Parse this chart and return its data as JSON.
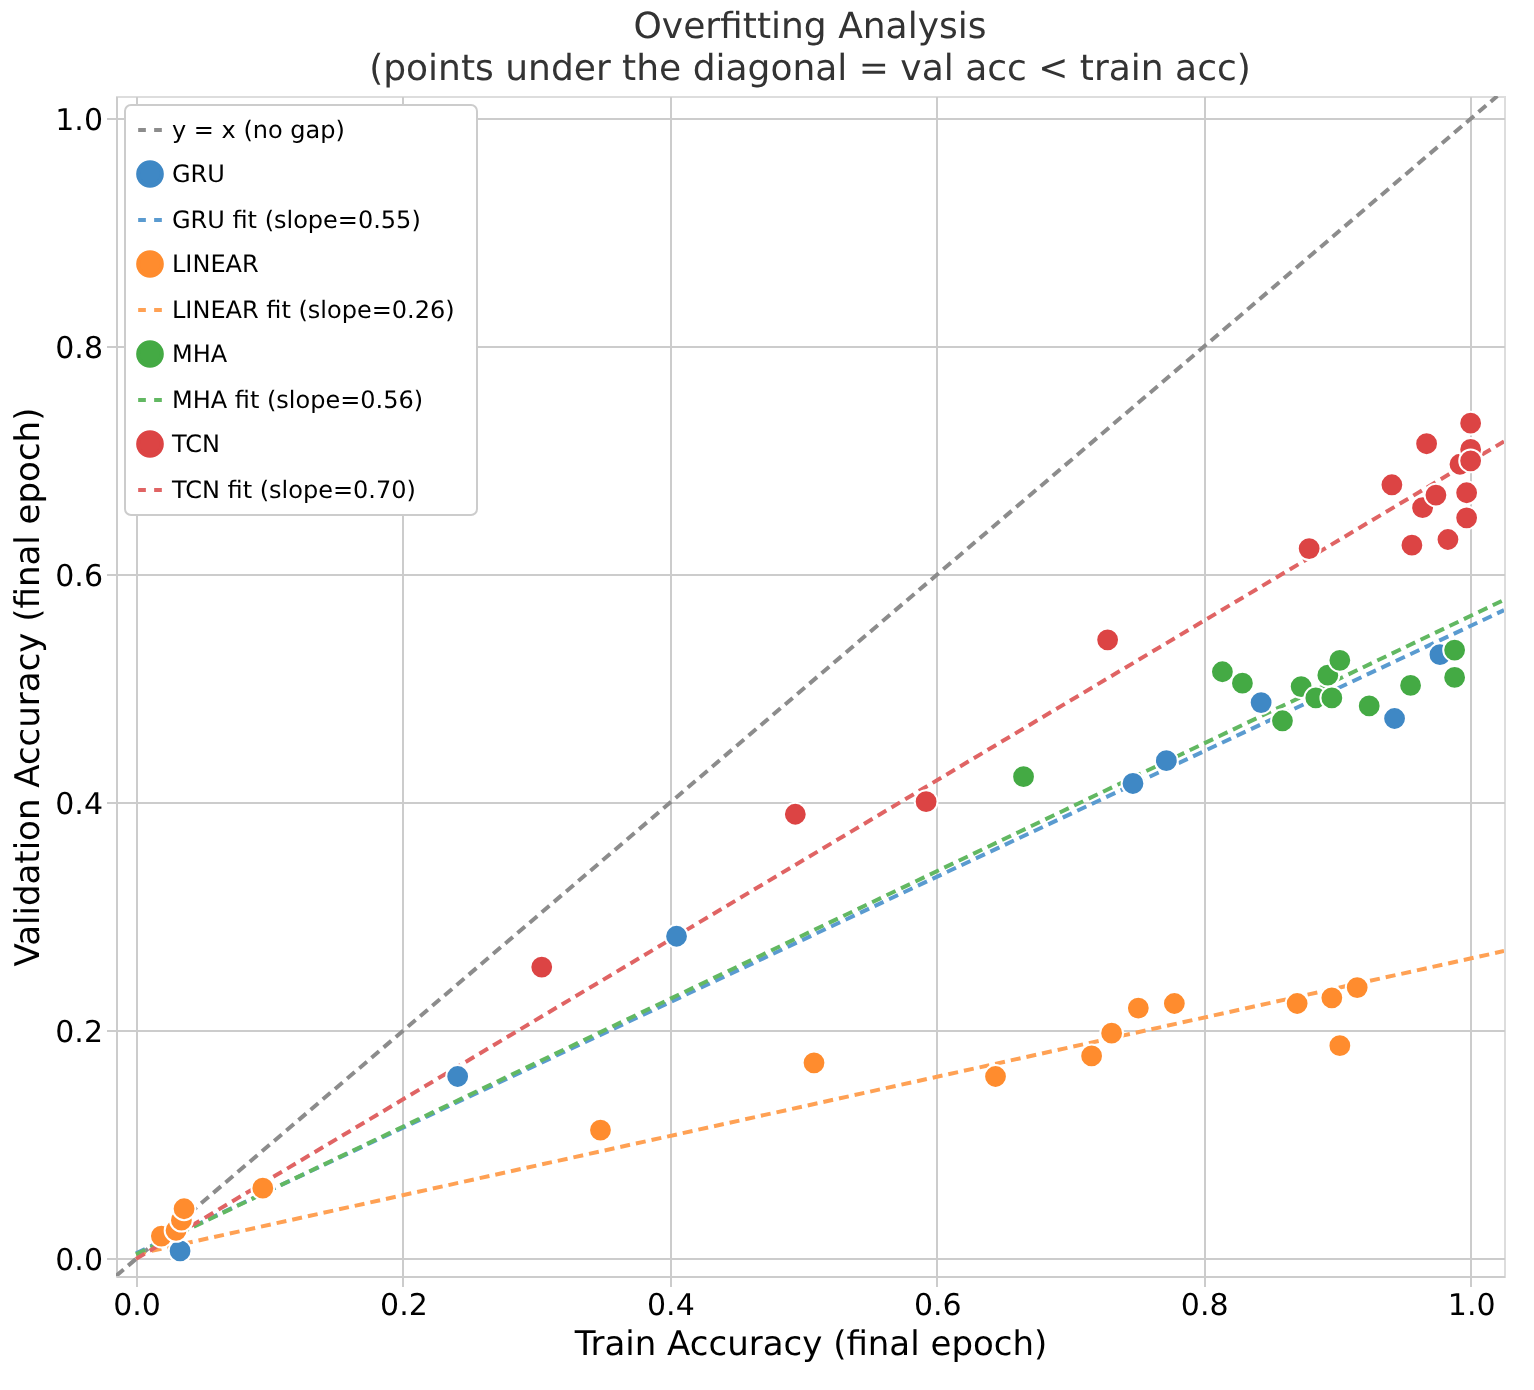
{
  "chart_data": {
    "type": "scatter",
    "title": "Overfitting Analysis",
    "subtitle": "(points under the diagonal = val acc < train acc)",
    "xlabel": "Train Accuracy (final epoch)",
    "ylabel": "Validation Accuracy (final epoch)",
    "xlim": [
      -0.015,
      1.025
    ],
    "ylim": [
      -0.015,
      1.02
    ],
    "xticks": [
      {
        "value": 0,
        "label": "0.0"
      },
      0.2,
      0.4,
      0.6,
      0.8,
      {
        "value": 1,
        "label": "1.0"
      }
    ],
    "yticks": [
      {
        "value": 0,
        "label": "0.0"
      },
      0.2,
      0.4,
      0.6,
      0.8,
      {
        "value": 1,
        "label": "1.0"
      }
    ],
    "grid": true,
    "legend": "top left",
    "series": [
      {
        "name": "y = x (no gap)",
        "type": "line",
        "line_style": "dashed",
        "color": "#8c8c8c",
        "x": [
          -0.015,
          1.02
        ],
        "values": [
          -0.015,
          1.02
        ]
      },
      {
        "name": "GRU",
        "marker": "circle",
        "color": "#3f88c5",
        "x": [
          0.033,
          0.241,
          0.405,
          0.747,
          0.772,
          0.843,
          0.943,
          0.977
        ],
        "values": [
          0.007,
          0.16,
          0.283,
          0.417,
          0.437,
          0.488,
          0.474,
          0.53
        ]
      },
      {
        "name": "GRU fit  (slope=0.55)",
        "type": "line",
        "line_style": "dashed",
        "color": "#5a9bd0",
        "x": [
          0.0,
          1.025
        ],
        "values": [
          0.005,
          0.569
        ]
      },
      {
        "name": "LINEAR",
        "marker": "circle",
        "color": "#ff8c2e",
        "x": [
          0.019,
          0.03,
          0.034,
          0.036,
          0.095,
          0.348,
          0.508,
          0.644,
          0.716,
          0.731,
          0.751,
          0.778,
          0.87,
          0.896,
          0.902,
          0.915
        ],
        "values": [
          0.02,
          0.025,
          0.034,
          0.044,
          0.062,
          0.113,
          0.172,
          0.16,
          0.178,
          0.198,
          0.22,
          0.224,
          0.224,
          0.229,
          0.187,
          0.238
        ]
      },
      {
        "name": "LINEAR fit  (slope=0.26)",
        "type": "line",
        "line_style": "dashed",
        "color": "#ffa154",
        "x": [
          0.0,
          1.025
        ],
        "values": [
          0.004,
          0.27
        ]
      },
      {
        "name": "MHA",
        "marker": "circle",
        "color": "#44aa44",
        "x": [
          0.665,
          0.814,
          0.829,
          0.859,
          0.873,
          0.884,
          0.893,
          0.896,
          0.902,
          0.924,
          0.955,
          0.988,
          0.988
        ],
        "values": [
          0.423,
          0.515,
          0.505,
          0.472,
          0.502,
          0.492,
          0.512,
          0.492,
          0.525,
          0.485,
          0.503,
          0.534,
          0.51
        ]
      },
      {
        "name": "MHA fit  (slope=0.56)",
        "type": "line",
        "line_style": "dashed",
        "color": "#62b862",
        "x": [
          0.0,
          1.025
        ],
        "values": [
          0.004,
          0.578
        ]
      },
      {
        "name": "TCN",
        "marker": "circle",
        "color": "#dc4444",
        "x": [
          0.304,
          0.494,
          0.592,
          0.728,
          0.879,
          0.941,
          0.956,
          0.964,
          0.967,
          0.974,
          0.983,
          0.992,
          0.997,
          0.997,
          1.0,
          1.0,
          1.0
        ],
        "values": [
          0.256,
          0.39,
          0.401,
          0.543,
          0.623,
          0.679,
          0.626,
          0.659,
          0.715,
          0.67,
          0.631,
          0.697,
          0.672,
          0.65,
          0.733,
          0.71,
          0.7
        ]
      },
      {
        "name": "TCN fit  (slope=0.70)",
        "type": "line",
        "line_style": "dashed",
        "color": "#e06464",
        "x": [
          0.0,
          1.025
        ],
        "values": [
          0.0,
          0.717
        ]
      }
    ]
  }
}
